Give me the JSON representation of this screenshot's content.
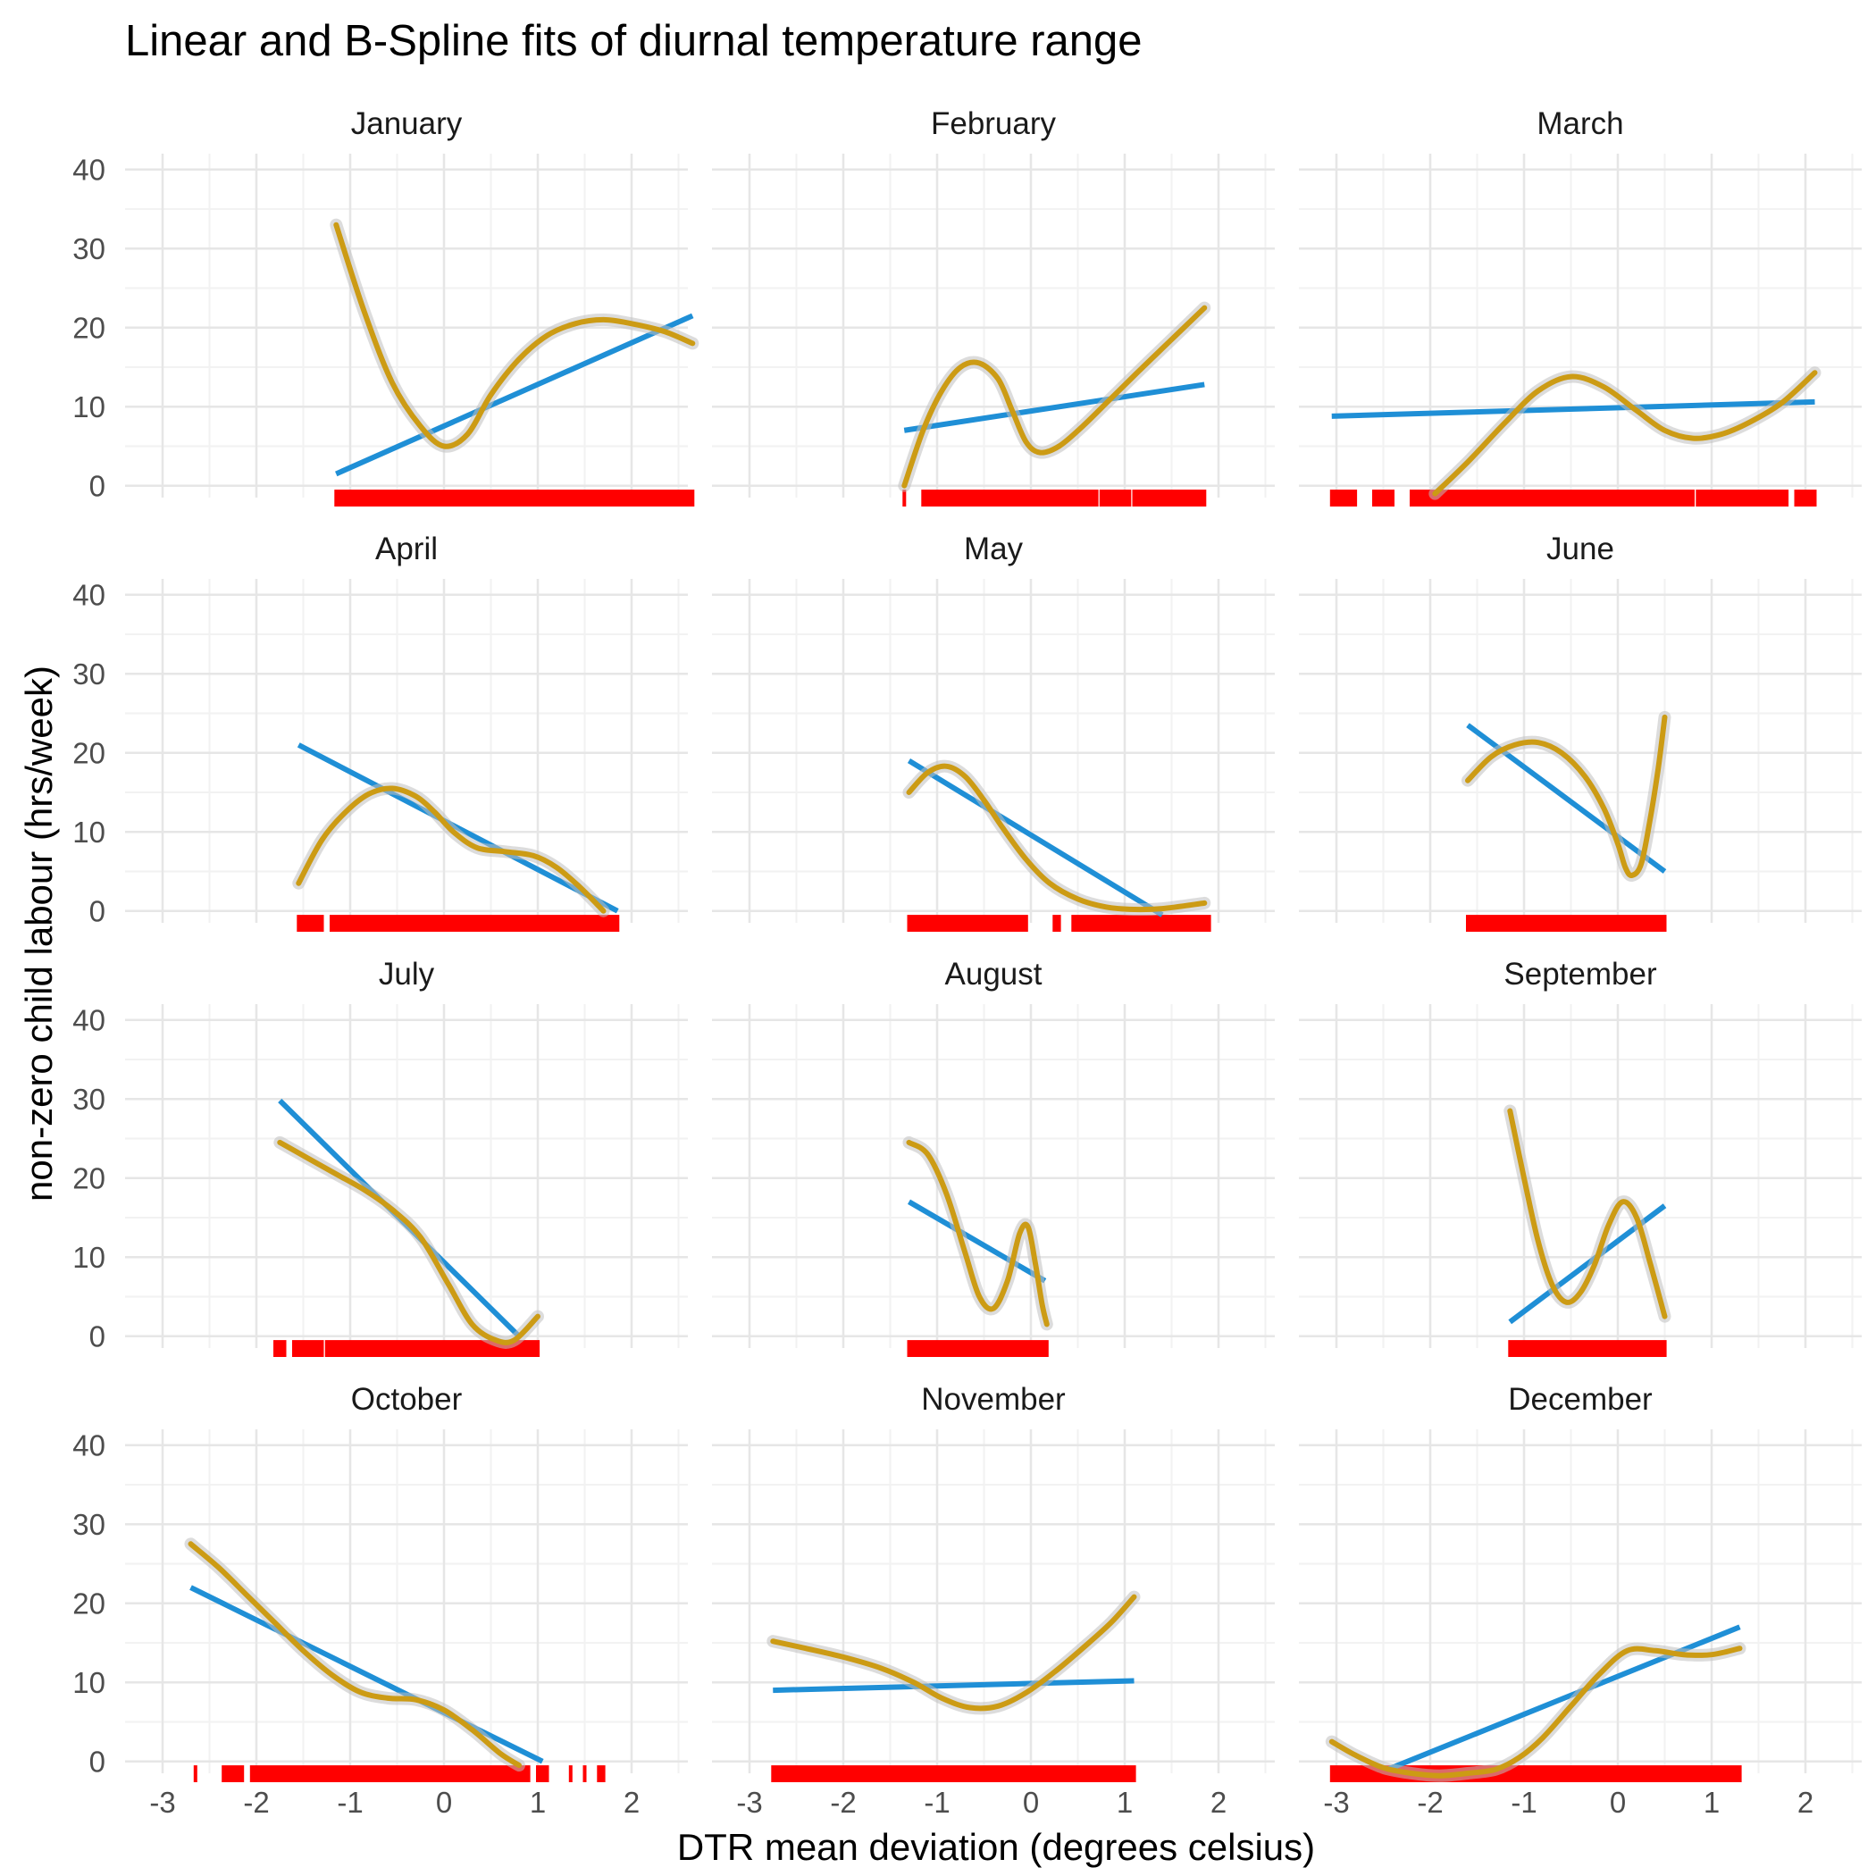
{
  "chart_data": {
    "type": "line",
    "title": "Linear and B-Spline fits of diurnal temperature range",
    "xlabel": "DTR mean deviation (degrees celsius)",
    "ylabel": "non-zero child labour (hrs/week)",
    "xlim": [
      -3.4,
      2.6
    ],
    "ylim": [
      -1.5,
      42
    ],
    "x_ticks": [
      -3,
      -2,
      -1,
      0,
      1,
      2
    ],
    "x_tick_labels": [
      "-3",
      "-2",
      "-1",
      "0",
      "1",
      "2"
    ],
    "y_ticks": [
      0,
      10,
      20,
      30,
      40
    ],
    "y_tick_labels": [
      "0",
      "10",
      "20",
      "30",
      "40"
    ],
    "grid": true,
    "layout": "facet grid, 4 rows x 3 columns, shared axes",
    "colors": {
      "linear": "#1f8fd6",
      "spline": "#cc9b14",
      "ci_band": "#bfbfbf",
      "rug": "#ff0000",
      "grid_major": "#e6e6e6",
      "grid_minor": "#f2f2f2"
    },
    "panels": [
      {
        "label": "January",
        "linear": [
          [
            -1.15,
            1.5
          ],
          [
            2.65,
            21.5
          ]
        ],
        "spline": [
          [
            -1.15,
            33
          ],
          [
            -0.85,
            22
          ],
          [
            -0.55,
            13
          ],
          [
            -0.25,
            7.5
          ],
          [
            0.0,
            5
          ],
          [
            0.25,
            6.5
          ],
          [
            0.5,
            11.5
          ],
          [
            0.8,
            16
          ],
          [
            1.1,
            19
          ],
          [
            1.4,
            20.5
          ],
          [
            1.7,
            21
          ],
          [
            2.0,
            20.5
          ],
          [
            2.35,
            19.5
          ],
          [
            2.65,
            18
          ]
        ],
        "rug": [
          [
            -1.15,
            2.65
          ]
        ]
      },
      {
        "label": "February",
        "linear": [
          [
            -1.35,
            7
          ],
          [
            1.85,
            12.8
          ]
        ],
        "spline": [
          [
            -1.35,
            0
          ],
          [
            -1.15,
            7
          ],
          [
            -0.95,
            12
          ],
          [
            -0.75,
            15
          ],
          [
            -0.55,
            15.5
          ],
          [
            -0.35,
            13.5
          ],
          [
            -0.2,
            9.5
          ],
          [
            -0.05,
            5.5
          ],
          [
            0.1,
            4.2
          ],
          [
            0.3,
            5
          ],
          [
            0.55,
            7.5
          ],
          [
            0.85,
            11
          ],
          [
            1.15,
            14.5
          ],
          [
            1.5,
            18.5
          ],
          [
            1.85,
            22.5
          ]
        ],
        "rug": [
          [
            -1.35,
            -1.35
          ],
          [
            -1.15,
            0.7
          ],
          [
            0.75,
            1.05
          ],
          [
            1.1,
            1.85
          ]
        ]
      },
      {
        "label": "March",
        "linear": [
          [
            -3.05,
            8.8
          ],
          [
            2.1,
            10.6
          ]
        ],
        "spline": [
          [
            -1.95,
            -1
          ],
          [
            -1.6,
            3
          ],
          [
            -1.2,
            8
          ],
          [
            -0.85,
            12
          ],
          [
            -0.5,
            13.8
          ],
          [
            -0.15,
            12.5
          ],
          [
            0.2,
            9.5
          ],
          [
            0.5,
            7
          ],
          [
            0.8,
            6
          ],
          [
            1.1,
            6.5
          ],
          [
            1.4,
            8
          ],
          [
            1.75,
            10.5
          ],
          [
            2.1,
            14.3
          ]
        ],
        "rug": [
          [
            -3.05,
            -2.8
          ],
          [
            -2.6,
            -2.4
          ],
          [
            -2.2,
            0.8
          ],
          [
            0.85,
            1.8
          ],
          [
            1.9,
            2.1
          ]
        ]
      },
      {
        "label": "April",
        "linear": [
          [
            -1.55,
            21
          ],
          [
            1.85,
            0
          ]
        ],
        "spline": [
          [
            -1.55,
            3.5
          ],
          [
            -1.3,
            9
          ],
          [
            -1.05,
            12.5
          ],
          [
            -0.8,
            14.8
          ],
          [
            -0.55,
            15.5
          ],
          [
            -0.3,
            14.5
          ],
          [
            -0.1,
            12.5
          ],
          [
            0.1,
            10
          ],
          [
            0.35,
            8
          ],
          [
            0.65,
            7.5
          ],
          [
            0.95,
            7
          ],
          [
            1.2,
            5.5
          ],
          [
            1.45,
            3
          ],
          [
            1.7,
            0
          ]
        ],
        "rug": [
          [
            -1.55,
            -1.3
          ],
          [
            -1.2,
            1.85
          ]
        ]
      },
      {
        "label": "May",
        "linear": [
          [
            -1.3,
            19
          ],
          [
            1.4,
            -0.5
          ]
        ],
        "spline": [
          [
            -1.3,
            15
          ],
          [
            -1.1,
            17.5
          ],
          [
            -0.9,
            18.3
          ],
          [
            -0.7,
            17
          ],
          [
            -0.5,
            14
          ],
          [
            -0.3,
            10.5
          ],
          [
            -0.05,
            6.5
          ],
          [
            0.2,
            3.5
          ],
          [
            0.5,
            1.5
          ],
          [
            0.8,
            0.5
          ],
          [
            1.1,
            0.2
          ],
          [
            1.4,
            0.3
          ],
          [
            1.85,
            1
          ]
        ],
        "rug": [
          [
            -1.3,
            -0.05
          ],
          [
            0.25,
            0.3
          ],
          [
            0.45,
            1.9
          ]
        ]
      },
      {
        "label": "June",
        "linear": [
          [
            -1.6,
            23.5
          ],
          [
            0.5,
            5
          ]
        ],
        "spline": [
          [
            -1.6,
            16.5
          ],
          [
            -1.35,
            19.5
          ],
          [
            -1.1,
            21
          ],
          [
            -0.85,
            21.3
          ],
          [
            -0.6,
            20
          ],
          [
            -0.35,
            17
          ],
          [
            -0.15,
            13
          ],
          [
            0.0,
            8.5
          ],
          [
            0.08,
            5.5
          ],
          [
            0.15,
            4.5
          ],
          [
            0.25,
            6
          ],
          [
            0.35,
            12
          ],
          [
            0.43,
            18
          ],
          [
            0.5,
            24.5
          ]
        ],
        "rug": [
          [
            -1.6,
            0.5
          ]
        ]
      },
      {
        "label": "July",
        "linear": [
          [
            -1.75,
            29.8
          ],
          [
            0.8,
            0
          ]
        ],
        "spline": [
          [
            -1.75,
            24.5
          ],
          [
            -1.45,
            22.5
          ],
          [
            -1.15,
            20.5
          ],
          [
            -0.85,
            18.5
          ],
          [
            -0.55,
            16
          ],
          [
            -0.25,
            12.5
          ],
          [
            0.05,
            6.5
          ],
          [
            0.3,
            1.5
          ],
          [
            0.55,
            -0.5
          ],
          [
            0.75,
            -0.5
          ],
          [
            1.0,
            2.5
          ]
        ],
        "rug": [
          [
            -1.8,
            -1.7
          ],
          [
            -1.6,
            -1.3
          ],
          [
            -1.25,
            1.0
          ]
        ]
      },
      {
        "label": "August",
        "linear": [
          [
            -1.3,
            17
          ],
          [
            0.15,
            7
          ]
        ],
        "spline": [
          [
            -1.3,
            24.5
          ],
          [
            -1.1,
            23
          ],
          [
            -0.9,
            18
          ],
          [
            -0.7,
            10.5
          ],
          [
            -0.55,
            5
          ],
          [
            -0.4,
            3.5
          ],
          [
            -0.25,
            7
          ],
          [
            -0.12,
            13
          ],
          [
            -0.03,
            13.8
          ],
          [
            0.05,
            9
          ],
          [
            0.12,
            4
          ],
          [
            0.17,
            1.5
          ]
        ],
        "rug": [
          [
            -1.3,
            0.17
          ]
        ]
      },
      {
        "label": "September",
        "linear": [
          [
            -1.15,
            1.8
          ],
          [
            0.5,
            16.5
          ]
        ],
        "spline": [
          [
            -1.15,
            28.5
          ],
          [
            -1.0,
            20
          ],
          [
            -0.85,
            12
          ],
          [
            -0.7,
            6.5
          ],
          [
            -0.55,
            4.3
          ],
          [
            -0.4,
            5.5
          ],
          [
            -0.25,
            9
          ],
          [
            -0.1,
            14
          ],
          [
            0.05,
            17
          ],
          [
            0.2,
            15
          ],
          [
            0.35,
            9
          ],
          [
            0.5,
            2.5
          ]
        ],
        "rug": [
          [
            -1.15,
            0.5
          ]
        ]
      },
      {
        "label": "October",
        "linear": [
          [
            -2.7,
            22
          ],
          [
            1.05,
            0
          ]
        ],
        "spline": [
          [
            -2.7,
            27.5
          ],
          [
            -2.4,
            24.5
          ],
          [
            -2.1,
            21
          ],
          [
            -1.8,
            17.5
          ],
          [
            -1.5,
            14
          ],
          [
            -1.2,
            11
          ],
          [
            -0.9,
            8.8
          ],
          [
            -0.6,
            8
          ],
          [
            -0.3,
            7.8
          ],
          [
            0.0,
            6.5
          ],
          [
            0.3,
            4
          ],
          [
            0.6,
            1
          ],
          [
            0.8,
            -0.5
          ]
        ],
        "rug": [
          [
            -2.65,
            -2.65
          ],
          [
            -2.35,
            -2.15
          ],
          [
            -2.05,
            0.9
          ],
          [
            1.0,
            1.1
          ],
          [
            1.35,
            1.35
          ],
          [
            1.5,
            1.5
          ],
          [
            1.65,
            1.7
          ]
        ]
      },
      {
        "label": "November",
        "linear": [
          [
            -2.75,
            9
          ],
          [
            1.1,
            10.2
          ]
        ],
        "spline": [
          [
            -2.75,
            15.2
          ],
          [
            -2.4,
            14.3
          ],
          [
            -2.0,
            13.2
          ],
          [
            -1.6,
            11.8
          ],
          [
            -1.25,
            10
          ],
          [
            -0.95,
            8
          ],
          [
            -0.65,
            6.8
          ],
          [
            -0.35,
            7
          ],
          [
            -0.05,
            8.7
          ],
          [
            0.25,
            11.3
          ],
          [
            0.55,
            14.3
          ],
          [
            0.85,
            17.5
          ],
          [
            1.1,
            20.8
          ]
        ],
        "rug": [
          [
            -2.75,
            1.1
          ]
        ]
      },
      {
        "label": "December",
        "linear": [
          [
            -2.45,
            -1
          ],
          [
            1.3,
            17
          ]
        ],
        "spline": [
          [
            -3.05,
            2.5
          ],
          [
            -2.8,
            0.8
          ],
          [
            -2.5,
            -0.8
          ],
          [
            -2.2,
            -1.5
          ],
          [
            -1.9,
            -1.8
          ],
          [
            -1.6,
            -1.5
          ],
          [
            -1.3,
            -1
          ],
          [
            -1.05,
            0.5
          ],
          [
            -0.8,
            3
          ],
          [
            -0.5,
            7
          ],
          [
            -0.2,
            11
          ],
          [
            0.1,
            14
          ],
          [
            0.4,
            14
          ],
          [
            0.7,
            13.5
          ],
          [
            1.0,
            13.5
          ],
          [
            1.3,
            14.3
          ]
        ],
        "rug": [
          [
            -3.05,
            1.3
          ]
        ]
      }
    ]
  }
}
